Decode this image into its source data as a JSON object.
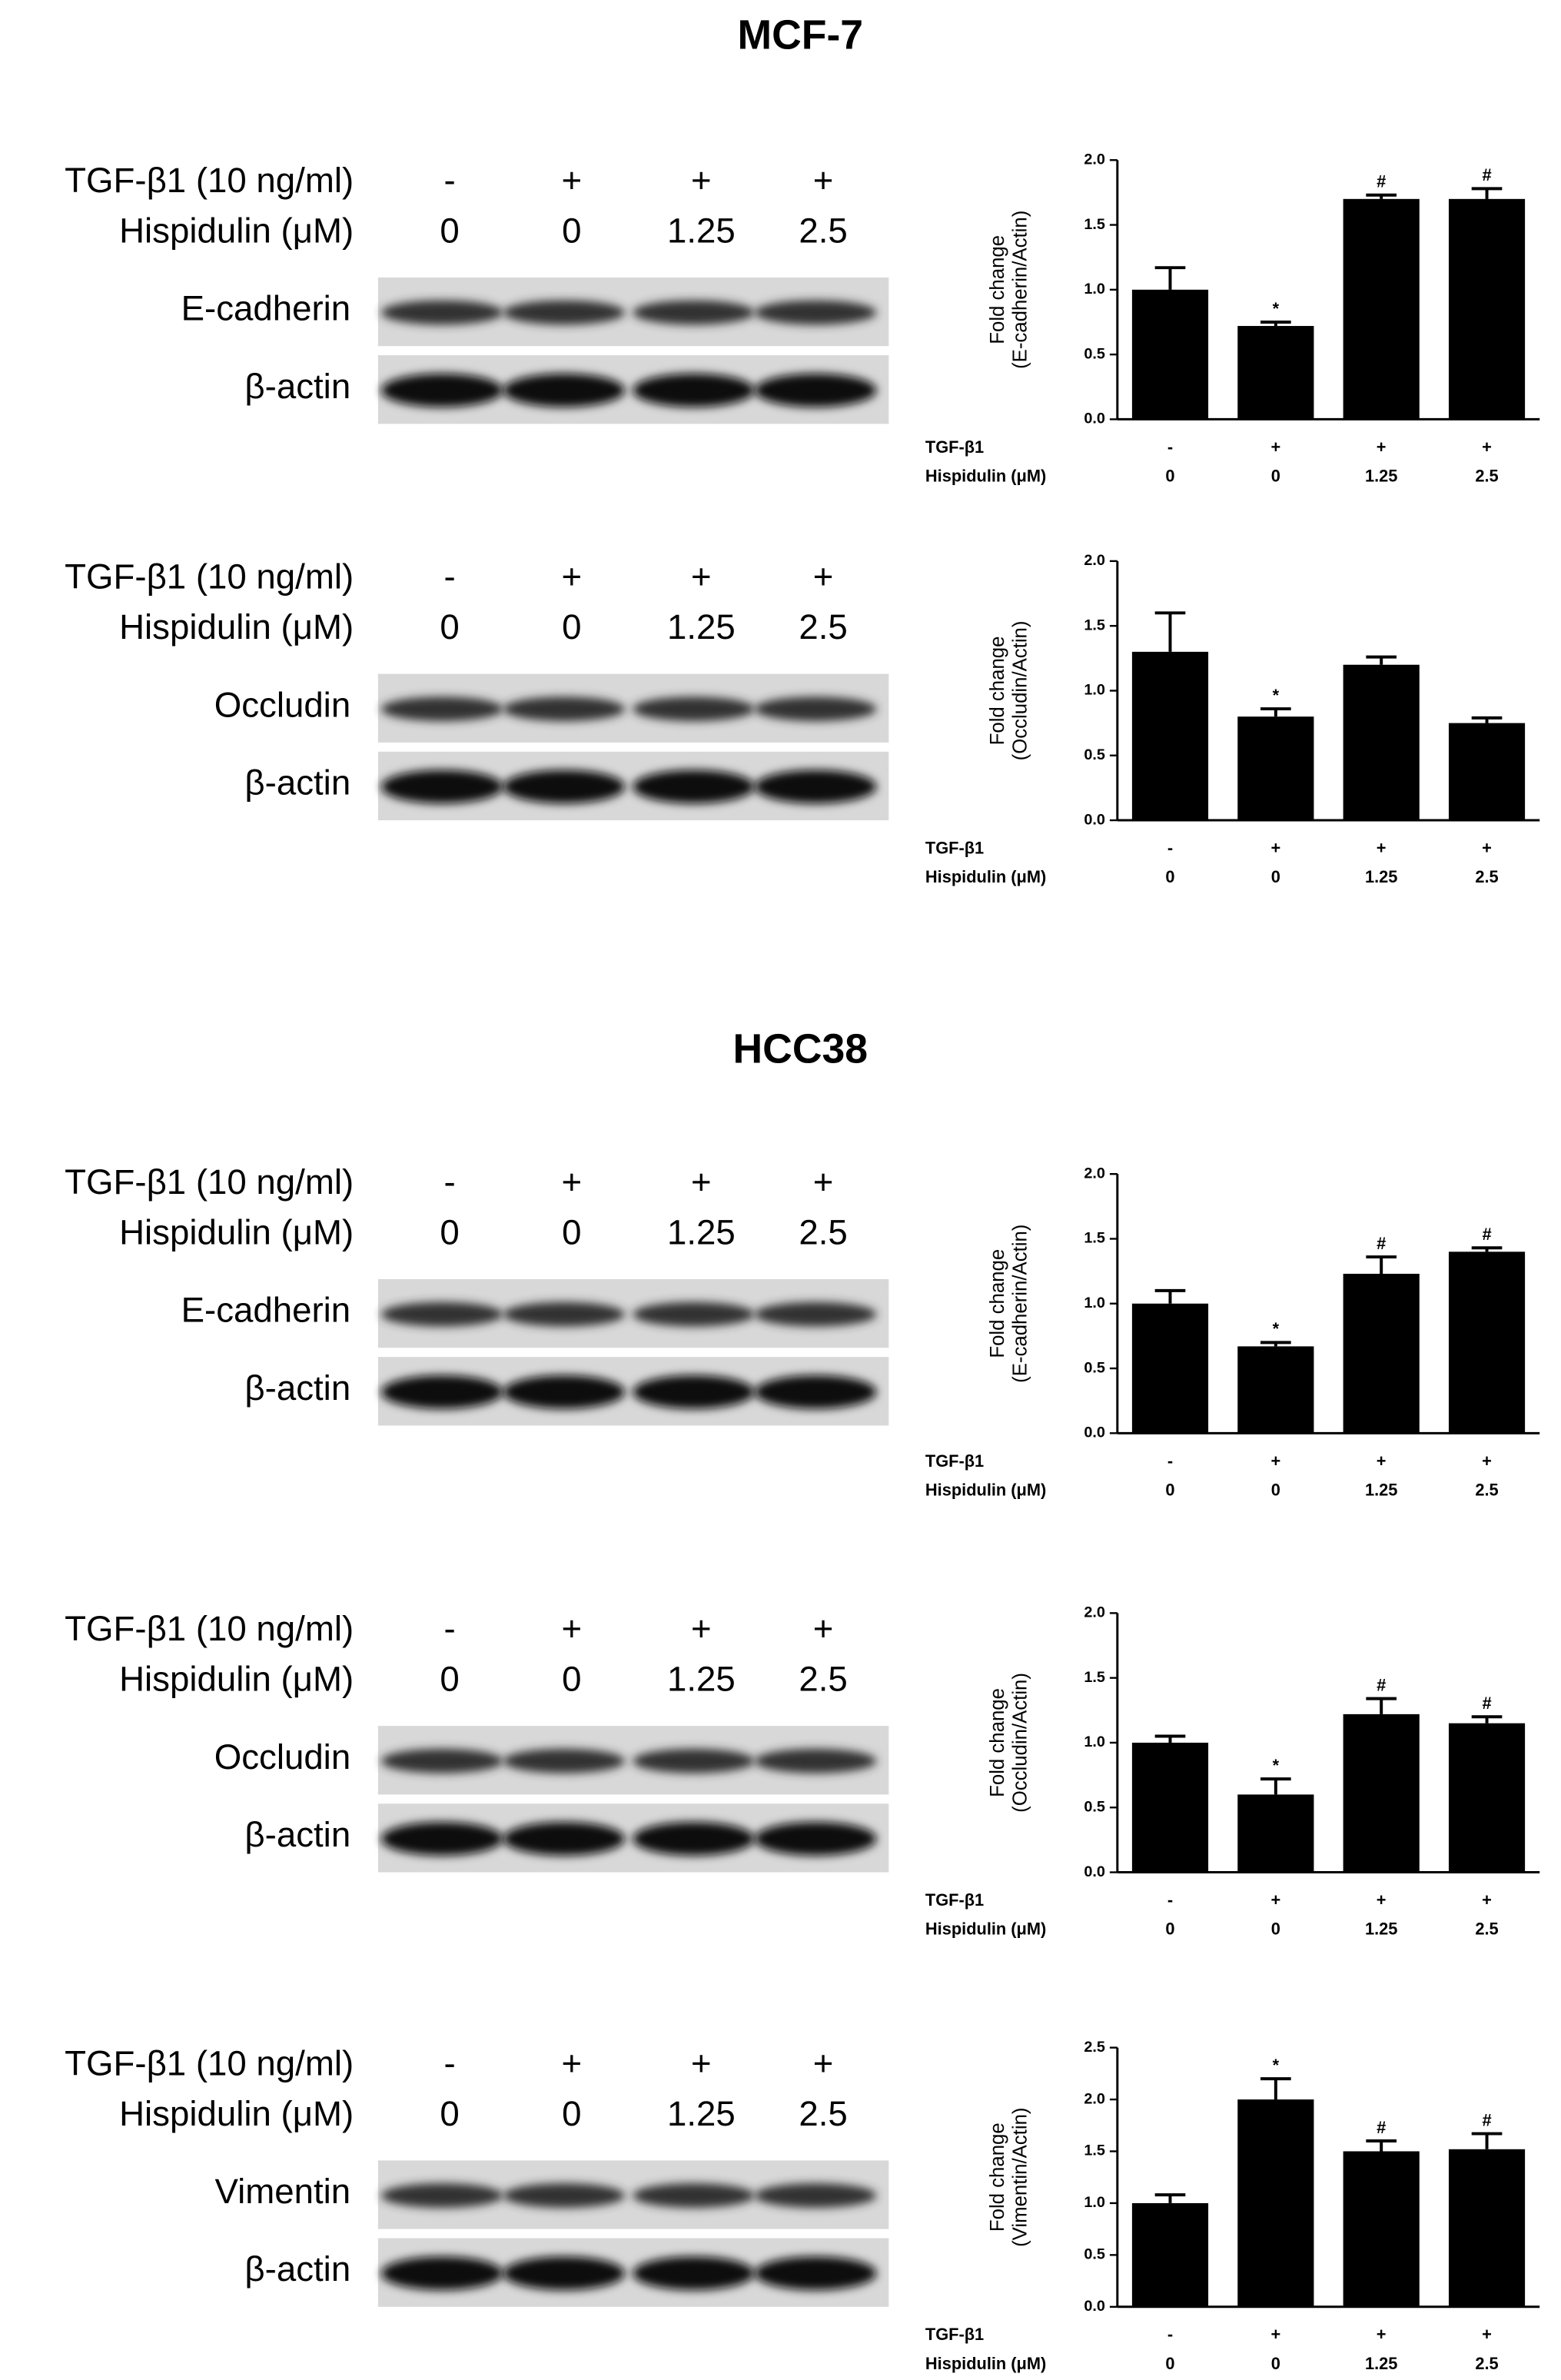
{
  "sections": [
    {
      "title": "MCF-7",
      "blots": [
        {
          "treatment_label": "TGF-β1 (10 ng/ml)",
          "dose_label": "Hispidulin (μM)",
          "tgf": [
            "-",
            "+",
            "+",
            "+"
          ],
          "dose": [
            "0",
            "0",
            "1.25",
            "2.5"
          ],
          "proteins": [
            "E-cadherin",
            "β-actin"
          ]
        },
        {
          "treatment_label": "TGF-β1 (10 ng/ml)",
          "dose_label": "Hispidulin (μM)",
          "tgf": [
            "-",
            "+",
            "+",
            "+"
          ],
          "dose": [
            "0",
            "0",
            "1.25",
            "2.5"
          ],
          "proteins": [
            "Occludin",
            "β-actin"
          ]
        }
      ]
    },
    {
      "title": "HCC38",
      "blots": [
        {
          "treatment_label": "TGF-β1 (10 ng/ml)",
          "dose_label": "Hispidulin (μM)",
          "tgf": [
            "-",
            "+",
            "+",
            "+"
          ],
          "dose": [
            "0",
            "0",
            "1.25",
            "2.5"
          ],
          "proteins": [
            "E-cadherin",
            "β-actin"
          ]
        },
        {
          "treatment_label": "TGF-β1 (10 ng/ml)",
          "dose_label": "Hispidulin (μM)",
          "tgf": [
            "-",
            "+",
            "+",
            "+"
          ],
          "dose": [
            "0",
            "0",
            "1.25",
            "2.5"
          ],
          "proteins": [
            "Occludin",
            "β-actin"
          ]
        },
        {
          "treatment_label": "TGF-β1 (10 ng/ml)",
          "dose_label": "Hispidulin (μM)",
          "tgf": [
            "-",
            "+",
            "+",
            "+"
          ],
          "dose": [
            "0",
            "0",
            "1.25",
            "2.5"
          ],
          "proteins": [
            "Vimentin",
            "β-actin"
          ]
        }
      ]
    }
  ],
  "chart_data": [
    {
      "type": "bar",
      "ylabel": [
        "Fold change",
        "(E-cadherin/Actin)"
      ],
      "row_labels": [
        "TGF-β1",
        "Hispidulin (μM)"
      ],
      "tgf": [
        "-",
        "+",
        "+",
        "+"
      ],
      "dose": [
        "0",
        "0",
        "1.25",
        "2.5"
      ],
      "values": [
        1.0,
        0.72,
        1.7,
        1.7
      ],
      "errors": [
        0.17,
        0.03,
        0.03,
        0.08
      ],
      "annotations": [
        null,
        "*",
        "#",
        "#"
      ],
      "color": "#000000",
      "ylim": [
        0,
        2
      ],
      "yticks": [
        {
          "value": 0,
          "label": "0.0"
        },
        0.5,
        {
          "value": 1,
          "label": "1.0"
        },
        1.5,
        {
          "value": 2,
          "label": "2.0"
        }
      ]
    },
    {
      "type": "bar",
      "ylabel": [
        "Fold change",
        "(Occludin/Actin)"
      ],
      "row_labels": [
        "TGF-β1",
        "Hispidulin (μM)"
      ],
      "tgf": [
        "-",
        "+",
        "+",
        "+"
      ],
      "dose": [
        "0",
        "0",
        "1.25",
        "2.5"
      ],
      "values": [
        1.3,
        0.8,
        1.2,
        0.75
      ],
      "errors": [
        0.3,
        0.06,
        0.06,
        0.04
      ],
      "annotations": [
        null,
        "*",
        null,
        null
      ],
      "color": "#000000",
      "ylim": [
        0,
        2
      ],
      "yticks": [
        {
          "value": 0,
          "label": "0.0"
        },
        0.5,
        {
          "value": 1,
          "label": "1.0"
        },
        1.5,
        {
          "value": 2,
          "label": "2.0"
        }
      ]
    },
    {
      "type": "bar",
      "ylabel": [
        "Fold change",
        "(E-cadherin/Actin)"
      ],
      "row_labels": [
        "TGF-β1",
        "Hispidulin (μM)"
      ],
      "tgf": [
        "-",
        "+",
        "+",
        "+"
      ],
      "dose": [
        "0",
        "0",
        "1.25",
        "2.5"
      ],
      "values": [
        1.0,
        0.67,
        1.23,
        1.4
      ],
      "errors": [
        0.1,
        0.03,
        0.13,
        0.03
      ],
      "annotations": [
        null,
        "*",
        "#",
        "#"
      ],
      "color": "#000000",
      "ylim": [
        0,
        2
      ],
      "yticks": [
        {
          "value": 0,
          "label": "0.0"
        },
        0.5,
        {
          "value": 1,
          "label": "1.0"
        },
        1.5,
        {
          "value": 2,
          "label": "2.0"
        }
      ]
    },
    {
      "type": "bar",
      "ylabel": [
        "Fold change",
        "(Occludin/Actin)"
      ],
      "row_labels": [
        "TGF-β1",
        "Hispidulin (μM)"
      ],
      "tgf": [
        "-",
        "+",
        "+",
        "+"
      ],
      "dose": [
        "0",
        "0",
        "1.25",
        "2.5"
      ],
      "values": [
        1.0,
        0.6,
        1.22,
        1.15
      ],
      "errors": [
        0.05,
        0.12,
        0.12,
        0.05
      ],
      "annotations": [
        null,
        "*",
        "#",
        "#"
      ],
      "color": "#000000",
      "ylim": [
        0,
        2
      ],
      "yticks": [
        {
          "value": 0,
          "label": "0.0"
        },
        0.5,
        {
          "value": 1,
          "label": "1.0"
        },
        1.5,
        {
          "value": 2,
          "label": "2.0"
        }
      ]
    },
    {
      "type": "bar",
      "ylabel": [
        "Fold change",
        "(Vimentin/Actin)"
      ],
      "row_labels": [
        "TGF-β1",
        "Hispidulin (μM)"
      ],
      "tgf": [
        "-",
        "+",
        "+",
        "+"
      ],
      "dose": [
        "0",
        "0",
        "1.25",
        "2.5"
      ],
      "values": [
        1.0,
        2.0,
        1.5,
        1.52
      ],
      "errors": [
        0.08,
        0.2,
        0.1,
        0.15
      ],
      "annotations": [
        null,
        "*",
        "#",
        "#"
      ],
      "color": "#000000",
      "ylim": [
        0,
        2.5
      ],
      "yticks": [
        {
          "value": 0,
          "label": "0.0"
        },
        0.5,
        {
          "value": 1,
          "label": "1.0"
        },
        1.5,
        {
          "value": 2,
          "label": "2.0"
        },
        2.5
      ]
    }
  ]
}
